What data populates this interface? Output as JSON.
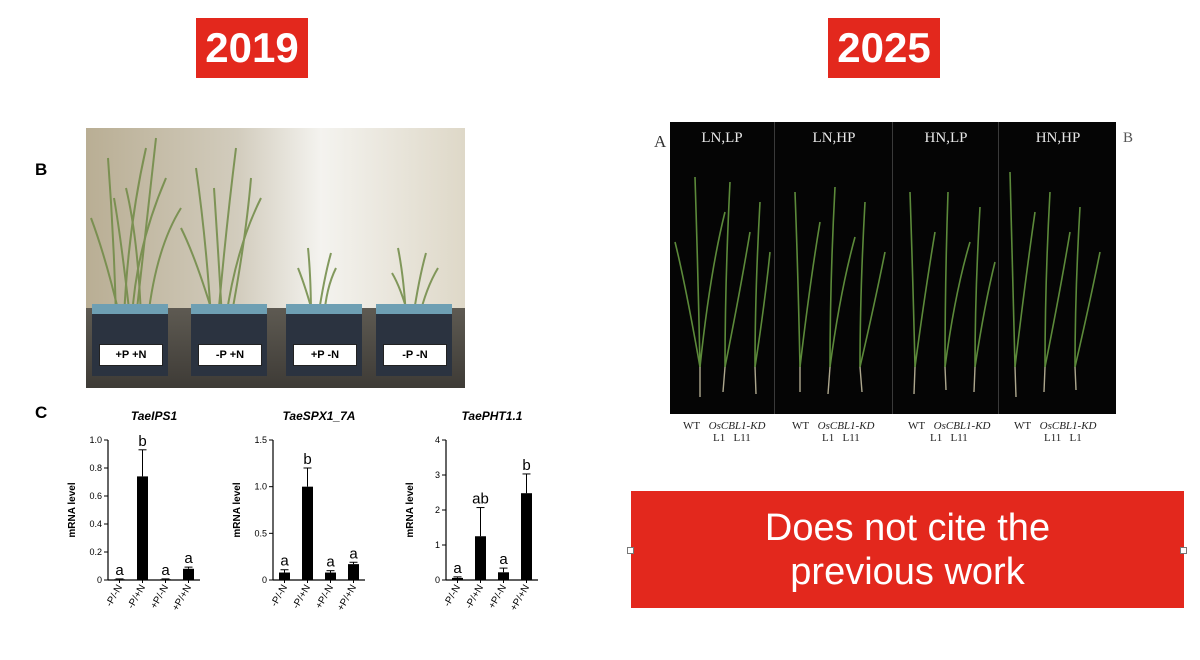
{
  "left": {
    "year": "2019",
    "panel_b_label": "B",
    "panel_c_label": "C",
    "tray_labels": [
      "+P +N",
      "-P +N",
      "+P -N",
      "-P -N"
    ]
  },
  "right": {
    "year": "2025",
    "panel_a_label": "A",
    "panel_b_edge": "B",
    "conditions": [
      "LN,LP",
      "LN,HP",
      "HN,LP",
      "HN,HP"
    ],
    "genotype_labels": [
      {
        "wt": "WT",
        "kd": "OsCBL1-KD",
        "lines": "L1   L11"
      },
      {
        "wt": "WT",
        "kd": "OsCBL1-KD",
        "lines": "L1   L11"
      },
      {
        "wt": "WT",
        "kd": "OsCBL1-KD",
        "lines": "L1   L11"
      },
      {
        "wt": "WT",
        "kd": "OsCBL1-KD",
        "lines": "L11   L1"
      }
    ]
  },
  "callout": {
    "line1": "Does not cite the",
    "line2": "previous work",
    "bg_color": "#e3281d"
  },
  "chart_data": [
    {
      "type": "bar",
      "title": "TaeIPS1",
      "ylabel": "mRNA level",
      "categories": [
        "-P/-N",
        "-P/+N",
        "+P/-N",
        "+P/+N"
      ],
      "values": [
        0.005,
        0.74,
        0.005,
        0.08
      ],
      "errors": [
        0.003,
        0.19,
        0.003,
        0.012
      ],
      "letters": [
        "a",
        "b",
        "a",
        "a"
      ],
      "ylim": [
        0,
        1.0
      ],
      "yticks": [
        0,
        0.2,
        0.4,
        0.6,
        0.8,
        1.0
      ],
      "ytick_labels": [
        "0",
        "0.2",
        "0.4",
        "0.6",
        "0.8",
        "1.0"
      ]
    },
    {
      "type": "bar",
      "title": "TaeSPX1_7A",
      "ylabel": "mRNA level",
      "categories": [
        "-P/-N",
        "-P/+N",
        "+P/-N",
        "+P/+N"
      ],
      "values": [
        0.08,
        1.0,
        0.08,
        0.17
      ],
      "errors": [
        0.03,
        0.2,
        0.02,
        0.02
      ],
      "letters": [
        "a",
        "b",
        "a",
        "a"
      ],
      "ylim": [
        0,
        1.5
      ],
      "yticks": [
        0,
        0.5,
        1.0,
        1.5
      ],
      "ytick_labels": [
        "0",
        "0.5",
        "1.0",
        "1.5"
      ]
    },
    {
      "type": "bar",
      "title": "TaePHT1.1",
      "ylabel": "mRNA level",
      "categories": [
        "-P/-N",
        "-P/+N",
        "+P/-N",
        "+P/+N"
      ],
      "values": [
        0.06,
        1.25,
        0.22,
        2.48
      ],
      "errors": [
        0.03,
        0.82,
        0.12,
        0.55
      ],
      "letters": [
        "a",
        "ab",
        "a",
        "b"
      ],
      "ylim": [
        0,
        4
      ],
      "yticks": [
        0,
        1,
        2,
        3,
        4
      ],
      "ytick_labels": [
        "0",
        "1",
        "2",
        "3",
        "4"
      ]
    }
  ]
}
